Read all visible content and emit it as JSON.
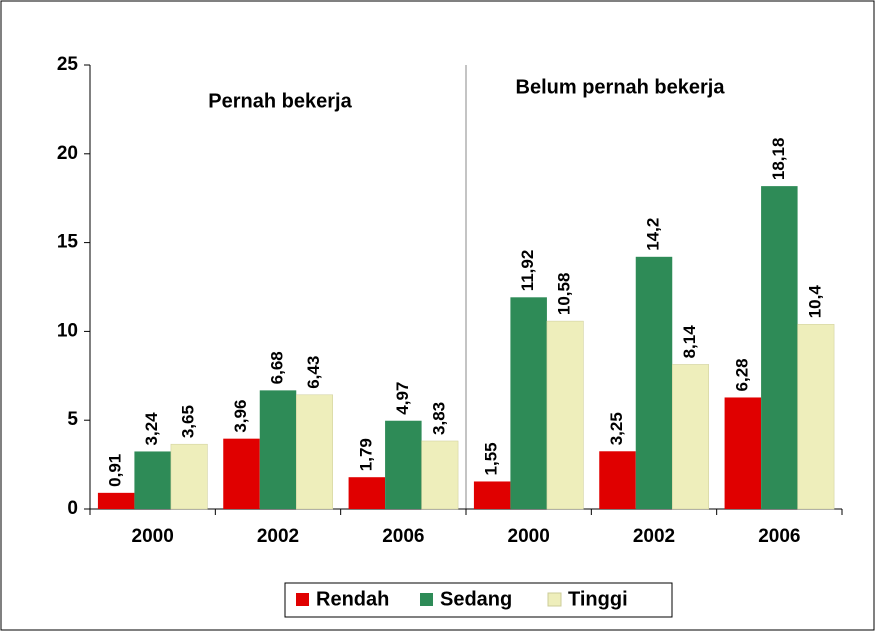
{
  "chart_data": {
    "type": "bar",
    "annotations": [
      "Pernah bekerja",
      "Belum pernah bekerja"
    ],
    "categories": [
      "2000",
      "2002",
      "2006",
      "2000",
      "2002",
      "2006"
    ],
    "series": [
      {
        "name": "Rendah",
        "color": "#e00000",
        "values": [
          0.91,
          3.96,
          1.79,
          1.55,
          3.25,
          6.28
        ],
        "value_labels": [
          "0,91",
          "3,96",
          "1,79",
          "1,55",
          "3,25",
          "6,28"
        ]
      },
      {
        "name": "Sedang",
        "color": "#2e8b57",
        "values": [
          3.24,
          6.68,
          4.97,
          11.92,
          14.2,
          18.18
        ],
        "value_labels": [
          "3,24",
          "6,68",
          "4,97",
          "11,92",
          "14,2",
          "18,18"
        ]
      },
      {
        "name": "Tinggi",
        "color": "#eeeebb",
        "values": [
          3.65,
          6.43,
          3.83,
          10.58,
          8.14,
          10.4
        ],
        "value_labels": [
          "3,65",
          "6,43",
          "3,83",
          "10,58",
          "8,14",
          "10,4"
        ]
      }
    ],
    "ylim": [
      0,
      25
    ],
    "yticks": [
      0,
      5,
      10,
      15,
      20,
      25
    ]
  }
}
